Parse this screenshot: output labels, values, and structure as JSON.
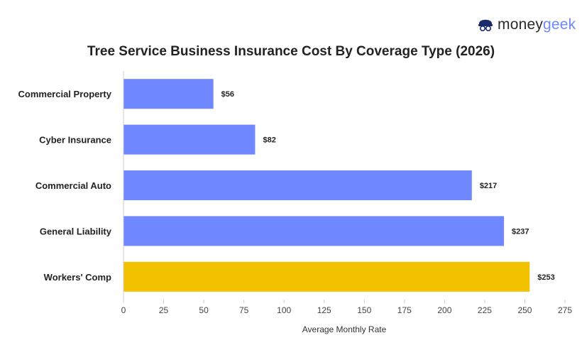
{
  "brand": {
    "name_part1": "money",
    "name_part2": "geek",
    "icon": "moneygeek-logo-icon",
    "colors": {
      "text": "#2b2b2b",
      "accent": "#6f87ff",
      "mark": "#1c2a6e"
    }
  },
  "chart_data": {
    "type": "bar",
    "orientation": "horizontal",
    "title": "Tree Service Business Insurance Cost By Coverage Type (2026)",
    "xlabel": "Average Monthly Rate",
    "ylabel": "",
    "categories": [
      "Commercial Property",
      "Cyber Insurance",
      "Commercial Auto",
      "General Liability",
      "Workers' Comp"
    ],
    "values": [
      56,
      82,
      217,
      237,
      253
    ],
    "value_labels": [
      "$56",
      "$82",
      "$217",
      "$237",
      "$253"
    ],
    "xlim": [
      0,
      275
    ],
    "xticks": [
      0,
      25,
      50,
      75,
      100,
      125,
      150,
      175,
      200,
      225,
      250,
      275
    ],
    "grid": false,
    "colors": {
      "default": "#7088ff",
      "highlight": "#f2c200",
      "highlight_category": "Workers' Comp"
    }
  }
}
